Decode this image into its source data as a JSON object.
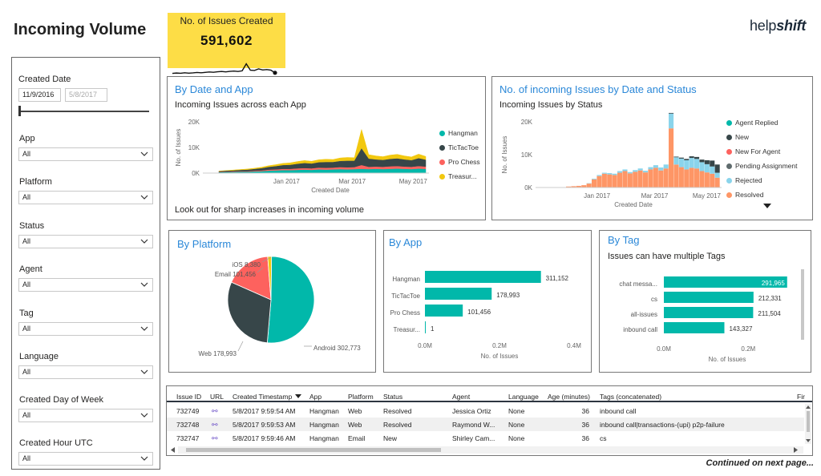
{
  "page": {
    "title": "Incoming Volume",
    "footer": "Continued on next page..."
  },
  "kpi": {
    "label": "No. of Issues Created",
    "value": "591,602",
    "spark": [
      0.15,
      0.18,
      0.16,
      0.2,
      0.17,
      0.19,
      0.22,
      0.2,
      0.23,
      0.26,
      0.24,
      0.28,
      0.3,
      0.27,
      0.31,
      0.33,
      0.3,
      0.35,
      0.9,
      0.4,
      0.38,
      0.5,
      0.42,
      0.45,
      0.4,
      0.2
    ]
  },
  "logo": {
    "regular": "help",
    "bold": "shift"
  },
  "filters": {
    "created_date": {
      "label": "Created Date",
      "start": "11/9/2016",
      "end": "5/8/2017"
    },
    "dropdowns": [
      {
        "label": "App",
        "value": "All"
      },
      {
        "label": "Platform",
        "value": "All"
      },
      {
        "label": "Status",
        "value": "All"
      },
      {
        "label": "Agent",
        "value": "All"
      },
      {
        "label": "Tag",
        "value": "All"
      },
      {
        "label": "Language",
        "value": "All"
      },
      {
        "label": "Created Day of Week",
        "value": "All"
      },
      {
        "label": "Created Hour UTC",
        "value": "All"
      }
    ]
  },
  "by_date_app": {
    "title": "By Date and App",
    "subtitle": "Incoming Issues across each App",
    "note": "Look out for sharp increases in incoming volume",
    "legend": [
      {
        "name": "Hangman",
        "color": "#01b8aa"
      },
      {
        "name": "TicTacToe",
        "color": "#374649"
      },
      {
        "name": "Pro Chess",
        "color": "#fd625e"
      },
      {
        "name": "Treasur...",
        "color": "#f2c80f"
      }
    ]
  },
  "by_date_status": {
    "title": "No. of incoming Issues by Date and Status",
    "subtitle": "Incoming Issues by Status",
    "legend": [
      {
        "name": "Agent Replied",
        "color": "#01b8aa"
      },
      {
        "name": "New",
        "color": "#374649"
      },
      {
        "name": "New For Agent",
        "color": "#fd625e"
      },
      {
        "name": "Pending Assignment",
        "color": "#5f6b6d"
      },
      {
        "name": "Rejected",
        "color": "#8ad4eb"
      },
      {
        "name": "Resolved",
        "color": "#fe9666"
      }
    ]
  },
  "by_platform": {
    "title": "By Platform"
  },
  "by_app": {
    "title": "By App"
  },
  "by_tag": {
    "title": "By Tag",
    "subtitle": "Issues can have multiple Tags"
  },
  "table": {
    "columns": [
      "Issue ID",
      "URL",
      "Created Timestamp",
      "App",
      "Platform",
      "Status",
      "Agent",
      "Language",
      "Age (minutes)",
      "Tags (concatenated)",
      "Fir"
    ],
    "rows": [
      {
        "id": "732749",
        "ts": "5/8/2017 9:59:54 AM",
        "app": "Hangman",
        "platform": "Web",
        "status": "Resolved",
        "agent": "Jessica Ortiz",
        "language": "None",
        "age": "36",
        "tags": "inbound call"
      },
      {
        "id": "732748",
        "ts": "5/8/2017 9:59:53 AM",
        "app": "Hangman",
        "platform": "Web",
        "status": "Resolved",
        "agent": "Raymond W...",
        "language": "None",
        "age": "36",
        "tags": "inbound call|transactions-(upi) p2p-failure"
      },
      {
        "id": "732747",
        "ts": "5/8/2017 9:59:46 AM",
        "app": "Hangman",
        "platform": "Email",
        "status": "New",
        "agent": "Shirley Cam...",
        "language": "None",
        "age": "36",
        "tags": "cs"
      }
    ]
  },
  "chart_data": [
    {
      "type": "area",
      "title": "By Date and App",
      "subtitle": "Incoming Issues across each App",
      "xlabel": "Created Date",
      "ylabel": "No. of Issues",
      "x_ticks": [
        "Jan 2017",
        "Mar 2017",
        "May 2017"
      ],
      "y_ticks": [
        "0K",
        "10K",
        "20K"
      ],
      "ylim": [
        0,
        20000
      ],
      "series": [
        {
          "name": "Hangman",
          "values": [
            200,
            300,
            300,
            400,
            400,
            500,
            600,
            800,
            900,
            1000,
            1000,
            1100,
            1200,
            1100,
            1300,
            1200,
            1300,
            1400,
            1300,
            1400,
            1500,
            1400,
            1500,
            1400,
            1500,
            1600,
            1500,
            1400,
            1600,
            1500
          ]
        },
        {
          "name": "TicTacToe",
          "values": [
            300,
            400,
            400,
            500,
            600,
            700,
            900,
            1100,
            1300,
            1500,
            1600,
            1800,
            2000,
            1900,
            2100,
            2300,
            2200,
            2400,
            2600,
            2500,
            6500,
            3200,
            2800,
            2700,
            2900,
            3000,
            2800,
            2600,
            3100,
            2700
          ]
        },
        {
          "name": "Pro Chess",
          "values": [
            100,
            100,
            200,
            200,
            200,
            300,
            300,
            400,
            400,
            500,
            500,
            600,
            600,
            600,
            700,
            700,
            700,
            800,
            800,
            800,
            1500,
            900,
            900,
            900,
            1000,
            1000,
            900,
            900,
            1000,
            900
          ]
        },
        {
          "name": "Treasur...",
          "values": [
            200,
            200,
            300,
            300,
            400,
            400,
            500,
            600,
            700,
            800,
            900,
            1000,
            1100,
            1000,
            1100,
            1200,
            1100,
            1300,
            1400,
            1300,
            7500,
            1700,
            1500,
            1400,
            1600,
            1700,
            1500,
            1400,
            1700,
            1400
          ]
        }
      ]
    },
    {
      "type": "bar",
      "title": "No. of incoming Issues by Date and Status",
      "subtitle": "Incoming Issues by Status",
      "xlabel": "Created Date",
      "ylabel": "No. of Issues",
      "x_ticks": [
        "Jan 2017",
        "Mar 2017",
        "May 2017"
      ],
      "y_ticks": [
        "0K",
        "10K",
        "20K"
      ],
      "ylim": [
        0,
        20000
      ],
      "series": [
        {
          "name": "Resolved",
          "values": [
            300,
            400,
            500,
            700,
            1200,
            2500,
            3500,
            4200,
            4000,
            3800,
            4500,
            5000,
            4300,
            4800,
            5200,
            4600,
            5500,
            6000,
            5200,
            5800,
            18000,
            7000,
            6200,
            5500,
            6000,
            5800,
            5000,
            4600,
            4200,
            3000
          ]
        },
        {
          "name": "Rejected",
          "values": [
            0,
            0,
            0,
            0,
            100,
            200,
            300,
            300,
            400,
            400,
            500,
            500,
            400,
            500,
            600,
            500,
            700,
            800,
            900,
            1200,
            4500,
            2200,
            2600,
            2800,
            3000,
            2900,
            2700,
            2500,
            2200,
            1500
          ]
        },
        {
          "name": "New",
          "values": [
            0,
            0,
            0,
            0,
            0,
            0,
            0,
            0,
            0,
            0,
            0,
            0,
            0,
            0,
            0,
            0,
            0,
            0,
            0,
            0,
            200,
            200,
            300,
            400,
            500,
            600,
            800,
            1200,
            1800,
            2500
          ]
        }
      ]
    },
    {
      "type": "pie",
      "title": "By Platform",
      "slices": [
        {
          "label": "Android",
          "value": 302773,
          "display": "Android 302,773",
          "color": "#01b8aa"
        },
        {
          "label": "Web",
          "value": 178993,
          "display": "Web 178,993",
          "color": "#374649"
        },
        {
          "label": "Email",
          "value": 101456,
          "display": "Email 101,456",
          "color": "#fd625e"
        },
        {
          "label": "iOS",
          "value": 8380,
          "display": "iOS 8,380",
          "color": "#f2c80f"
        }
      ]
    },
    {
      "type": "bar",
      "orientation": "horizontal",
      "title": "By App",
      "xlabel": "No. of Issues",
      "x_ticks": [
        "0.0M",
        "0.2M",
        "0.4M"
      ],
      "xlim": [
        0,
        400000
      ],
      "categories": [
        "Hangman",
        "TicTacToe",
        "Pro Chess",
        "Treasur..."
      ],
      "values": [
        311152,
        178993,
        101456,
        1
      ],
      "labels": [
        "311,152",
        "178,993",
        "101,456",
        "1"
      ]
    },
    {
      "type": "bar",
      "orientation": "horizontal",
      "title": "By Tag",
      "subtitle": "Issues can have multiple Tags",
      "xlabel": "No. of Issues",
      "x_ticks": [
        "0.0M",
        "0.2M"
      ],
      "xlim": [
        0,
        300000
      ],
      "categories": [
        "chat messa...",
        "cs",
        "all-issues",
        "inbound call"
      ],
      "values": [
        291965,
        212331,
        211504,
        143327
      ],
      "labels": [
        "291,965",
        "212,331",
        "211,504",
        "143,327"
      ]
    }
  ]
}
